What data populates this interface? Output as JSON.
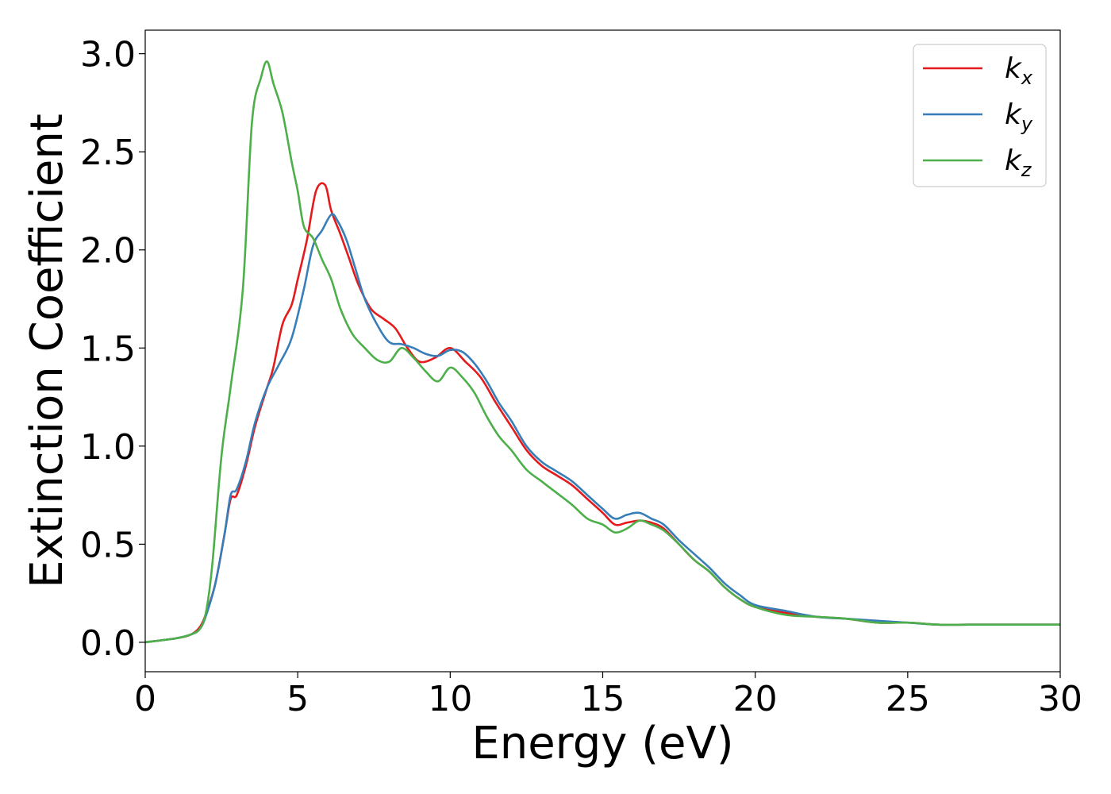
{
  "chart_data": {
    "type": "line",
    "xlabel": "Energy (eV)",
    "ylabel": "Extinction Coefficient",
    "xlim": [
      0,
      30
    ],
    "ylim": [
      -0.15,
      3.12
    ],
    "xticks": [
      0,
      5,
      10,
      15,
      20,
      25,
      30
    ],
    "xtick_labels": [
      "0",
      "5",
      "10",
      "15",
      "20",
      "25",
      "30"
    ],
    "yticks": [
      0.0,
      0.5,
      1.0,
      1.5,
      2.0,
      2.5,
      3.0
    ],
    "ytick_labels": [
      "0.0",
      "0.5",
      "1.0",
      "1.5",
      "2.0",
      "2.5",
      "3.0"
    ],
    "grid": false,
    "legend_position": "top-right",
    "series": [
      {
        "name": "k_x",
        "legend_main": "k",
        "legend_sub": "x",
        "color": "#e41a1c",
        "x": [
          0,
          1,
          1.5,
          1.8,
          2.0,
          2.3,
          2.6,
          2.8,
          3.0,
          3.3,
          3.6,
          4.0,
          4.2,
          4.5,
          4.8,
          5.0,
          5.3,
          5.6,
          5.9,
          6.1,
          6.4,
          6.7,
          7.0,
          7.4,
          7.8,
          8.2,
          8.6,
          9.0,
          9.5,
          10.0,
          10.5,
          11.0,
          11.5,
          12.0,
          12.5,
          13.0,
          13.5,
          14.0,
          14.5,
          15.0,
          15.4,
          15.8,
          16.2,
          16.6,
          17.0,
          17.5,
          18.0,
          18.5,
          19.0,
          19.5,
          20.0,
          21.0,
          22.0,
          23.0,
          24.0,
          25.0,
          26.0,
          27.0,
          28.0,
          29.0,
          30.0
        ],
        "y": [
          0.0,
          0.02,
          0.04,
          0.08,
          0.15,
          0.3,
          0.55,
          0.73,
          0.75,
          0.9,
          1.1,
          1.3,
          1.4,
          1.62,
          1.72,
          1.85,
          2.05,
          2.3,
          2.33,
          2.2,
          2.08,
          1.95,
          1.82,
          1.7,
          1.65,
          1.6,
          1.5,
          1.43,
          1.45,
          1.5,
          1.43,
          1.35,
          1.22,
          1.1,
          0.98,
          0.9,
          0.85,
          0.8,
          0.73,
          0.66,
          0.6,
          0.61,
          0.62,
          0.61,
          0.58,
          0.5,
          0.42,
          0.36,
          0.28,
          0.22,
          0.18,
          0.15,
          0.13,
          0.12,
          0.1,
          0.1,
          0.09,
          0.09,
          0.09,
          0.09,
          0.09
        ]
      },
      {
        "name": "k_y",
        "legend_main": "k",
        "legend_sub": "y",
        "color": "#377eb8",
        "x": [
          0,
          1,
          1.5,
          1.8,
          2.0,
          2.3,
          2.6,
          2.8,
          3.0,
          3.3,
          3.6,
          4.0,
          4.4,
          4.8,
          5.2,
          5.5,
          5.8,
          6.1,
          6.3,
          6.6,
          6.9,
          7.2,
          7.6,
          8.0,
          8.4,
          8.8,
          9.2,
          9.6,
          10.0,
          10.4,
          10.8,
          11.2,
          11.6,
          12.0,
          12.5,
          13.0,
          13.5,
          14.0,
          14.5,
          15.0,
          15.4,
          15.8,
          16.2,
          16.6,
          17.0,
          17.5,
          18.0,
          18.5,
          19.0,
          19.5,
          20.0,
          21.0,
          22.0,
          23.0,
          24.0,
          25.0,
          26.0,
          27.0,
          28.0,
          29.0,
          30.0
        ],
        "y": [
          0.0,
          0.02,
          0.04,
          0.07,
          0.14,
          0.3,
          0.55,
          0.75,
          0.78,
          0.92,
          1.12,
          1.3,
          1.42,
          1.55,
          1.8,
          2.02,
          2.1,
          2.18,
          2.15,
          2.05,
          1.9,
          1.75,
          1.62,
          1.53,
          1.52,
          1.5,
          1.47,
          1.46,
          1.49,
          1.48,
          1.42,
          1.33,
          1.22,
          1.13,
          1.0,
          0.92,
          0.87,
          0.82,
          0.75,
          0.68,
          0.63,
          0.65,
          0.66,
          0.63,
          0.6,
          0.52,
          0.45,
          0.38,
          0.3,
          0.24,
          0.19,
          0.16,
          0.13,
          0.12,
          0.11,
          0.1,
          0.09,
          0.09,
          0.09,
          0.09,
          0.09
        ]
      },
      {
        "name": "k_z",
        "legend_main": "k",
        "legend_sub": "z",
        "color": "#4daf4a",
        "x": [
          0,
          1,
          1.5,
          1.8,
          2.0,
          2.2,
          2.5,
          2.8,
          3.2,
          3.5,
          3.8,
          4.0,
          4.2,
          4.5,
          4.8,
          5.0,
          5.2,
          5.5,
          5.8,
          6.1,
          6.4,
          6.8,
          7.2,
          7.6,
          8.0,
          8.4,
          8.8,
          9.2,
          9.6,
          10.0,
          10.4,
          10.8,
          11.2,
          11.6,
          12.0,
          12.5,
          13.0,
          13.5,
          14.0,
          14.5,
          15.0,
          15.4,
          15.8,
          16.2,
          16.6,
          17.0,
          17.5,
          18.0,
          18.5,
          19.0,
          19.5,
          20.0,
          21.0,
          22.0,
          23.0,
          24.0,
          25.0,
          26.0,
          27.0,
          28.0,
          29.0,
          30.0
        ],
        "y": [
          0.0,
          0.02,
          0.04,
          0.07,
          0.16,
          0.4,
          0.95,
          1.3,
          1.8,
          2.65,
          2.88,
          2.96,
          2.85,
          2.7,
          2.45,
          2.3,
          2.12,
          2.06,
          1.95,
          1.85,
          1.7,
          1.57,
          1.5,
          1.44,
          1.43,
          1.5,
          1.45,
          1.38,
          1.33,
          1.4,
          1.35,
          1.27,
          1.15,
          1.05,
          0.98,
          0.88,
          0.82,
          0.76,
          0.7,
          0.63,
          0.6,
          0.56,
          0.58,
          0.62,
          0.6,
          0.57,
          0.5,
          0.42,
          0.36,
          0.28,
          0.22,
          0.18,
          0.14,
          0.13,
          0.12,
          0.1,
          0.1,
          0.09,
          0.09,
          0.09,
          0.09,
          0.09
        ]
      }
    ]
  }
}
